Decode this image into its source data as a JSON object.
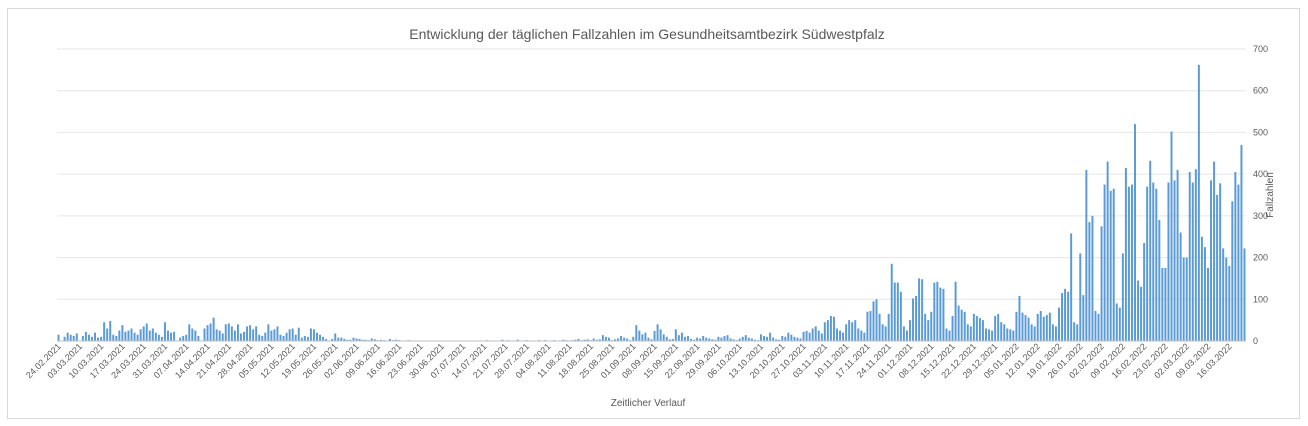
{
  "chart_data": {
    "type": "bar",
    "title": "Entwicklung der täglichen Fallzahlen im Gesundheitsamtbezirk Südwestpfalz",
    "xlabel": "Zeitlicher Verlauf",
    "ylabel": "Fallzahlen",
    "ylim": [
      0,
      700
    ],
    "y_ticks": [
      0,
      100,
      200,
      300,
      400,
      500,
      600,
      700
    ],
    "y_axis_side": "right",
    "grid": true,
    "legend": "none",
    "bar_color": "#5b9bd5",
    "x_start": "24.02.2021",
    "x_tick_labels": [
      "24.02.2021",
      "03.03.2021",
      "10.03.2021",
      "17.03.2021",
      "24.03.2021",
      "31.03.2021",
      "07.04.2021",
      "14.04.2021",
      "21.04.2021",
      "28.04.2021",
      "05.05.2021",
      "12.05.2021",
      "19.05.2021",
      "26.05.2021",
      "02.06.2021",
      "09.06.2021",
      "16.06.2021",
      "23.06.2021",
      "30.06.2021",
      "07.07.2021",
      "14.07.2021",
      "21.07.2021",
      "28.07.2021",
      "04.08.2021",
      "11.08.2021",
      "18.08.2021",
      "25.08.2021",
      "01.09.2021",
      "08.09.2021",
      "15.09.2021",
      "22.09.2021",
      "29.09.2021",
      "06.10.2021",
      "13.10.2021",
      "20.10.2021",
      "27.10.2021",
      "03.11.2021",
      "10.11.2021",
      "17.11.2021",
      "24.11.2021",
      "01.12.2021",
      "08.12.2021",
      "15.12.2021",
      "22.12.2021",
      "29.12.2021",
      "05.01.2022",
      "12.01.2022",
      "19.01.2022",
      "26.01.2022",
      "02.02.2022",
      "09.02.2022",
      "16.02.2022",
      "23.02.2022",
      "02.03.2022",
      "09.03.2022",
      "16.03.2022"
    ],
    "values": [
      15,
      0,
      10,
      20,
      15,
      12,
      18,
      0,
      12,
      22,
      15,
      10,
      20,
      8,
      10,
      45,
      30,
      48,
      15,
      12,
      25,
      38,
      22,
      25,
      30,
      20,
      15,
      28,
      35,
      42,
      25,
      30,
      20,
      15,
      10,
      45,
      25,
      20,
      22,
      0,
      8,
      12,
      15,
      40,
      30,
      25,
      12,
      0,
      30,
      38,
      42,
      56,
      28,
      25,
      18,
      40,
      42,
      35,
      25,
      40,
      18,
      22,
      35,
      38,
      28,
      35,
      15,
      12,
      20,
      40,
      25,
      28,
      35,
      15,
      12,
      20,
      28,
      30,
      15,
      32,
      8,
      12,
      10,
      30,
      28,
      20,
      15,
      10,
      5,
      0,
      5,
      18,
      8,
      8,
      5,
      3,
      3,
      8,
      6,
      5,
      3,
      3,
      2,
      6,
      4,
      2,
      3,
      2,
      1,
      5,
      2,
      3,
      2,
      1,
      0,
      2,
      1,
      0,
      1,
      0,
      1,
      0,
      1,
      0,
      0,
      1,
      0,
      1,
      0,
      0,
      1,
      0,
      0,
      1,
      0,
      1,
      0,
      0,
      1,
      1,
      0,
      2,
      0,
      1,
      0,
      1,
      3,
      0,
      2,
      1,
      0,
      3,
      1,
      0,
      2,
      1,
      1,
      0,
      2,
      1,
      2,
      0,
      1,
      2,
      1,
      1,
      3,
      2,
      0,
      2,
      3,
      5,
      2,
      3,
      4,
      2,
      6,
      3,
      4,
      14,
      10,
      8,
      2,
      4,
      6,
      12,
      8,
      6,
      2,
      10,
      38,
      25,
      16,
      20,
      8,
      4,
      24,
      40,
      28,
      16,
      10,
      4,
      5,
      28,
      14,
      20,
      10,
      12,
      5,
      3,
      8,
      6,
      12,
      8,
      6,
      4,
      3,
      10,
      8,
      12,
      14,
      6,
      4,
      2,
      6,
      10,
      14,
      8,
      6,
      3,
      2,
      16,
      12,
      10,
      20,
      8,
      4,
      3,
      12,
      10,
      20,
      15,
      10,
      8,
      6,
      22,
      24,
      20,
      30,
      35,
      25,
      18,
      45,
      50,
      60,
      58,
      30,
      25,
      20,
      40,
      50,
      45,
      50,
      30,
      25,
      20,
      70,
      72,
      95,
      100,
      65,
      40,
      35,
      65,
      185,
      140,
      140,
      118,
      35,
      25,
      50,
      102,
      108,
      150,
      148,
      65,
      50,
      70,
      140,
      142,
      128,
      125,
      30,
      25,
      60,
      142,
      85,
      75,
      70,
      40,
      35,
      65,
      60,
      55,
      50,
      30,
      28,
      25,
      60,
      65,
      45,
      40,
      30,
      28,
      25,
      70,
      108,
      68,
      62,
      56,
      40,
      35,
      65,
      72,
      58,
      62,
      68,
      40,
      35,
      80,
      115,
      125,
      118,
      258,
      45,
      40,
      210,
      110,
      410,
      285,
      300,
      72,
      65,
      275,
      375,
      430,
      360,
      365,
      90,
      80,
      210,
      415,
      370,
      375,
      520,
      145,
      130,
      235,
      370,
      432,
      380,
      365,
      290,
      175,
      175,
      380,
      502,
      385,
      410,
      260,
      200,
      200,
      405,
      380,
      412,
      662,
      250,
      225,
      175,
      385,
      430,
      350,
      378,
      222,
      200,
      180,
      335,
      405,
      375,
      470,
      222
    ]
  }
}
